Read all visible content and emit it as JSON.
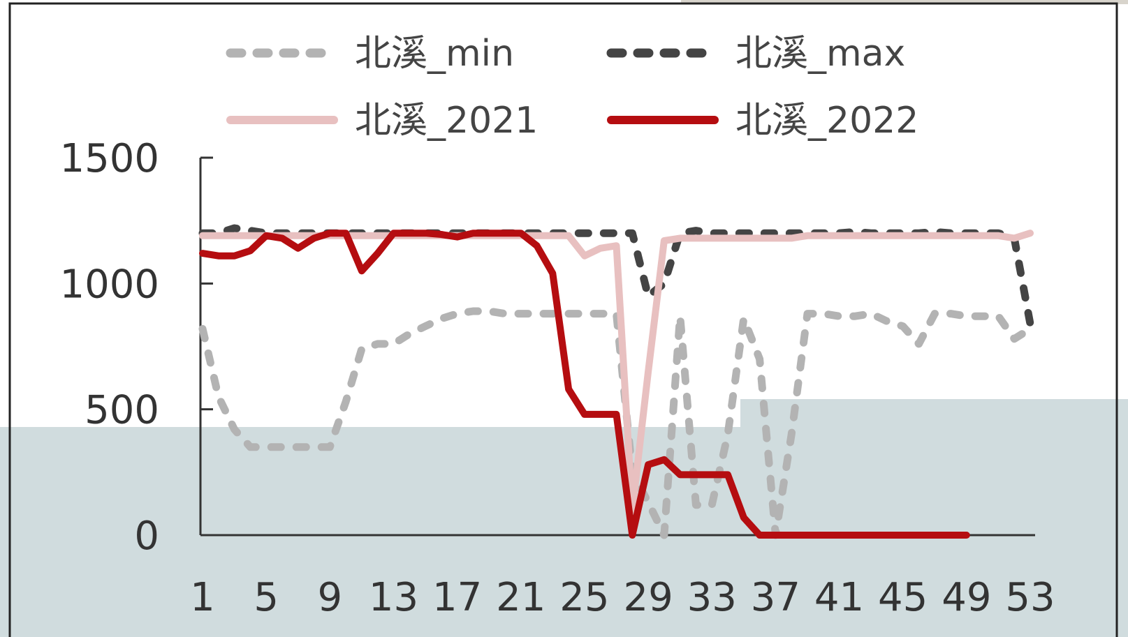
{
  "chart_data": {
    "type": "line",
    "title": "",
    "xlabel": "",
    "ylabel": "",
    "ylim": [
      0,
      1500
    ],
    "y_ticks": [
      "0",
      "500",
      "1000",
      "1500"
    ],
    "x_range": [
      1,
      53
    ],
    "x_ticks": [
      "1",
      "5",
      "9",
      "13",
      "17",
      "21",
      "25",
      "29",
      "33",
      "37",
      "41",
      "45",
      "49",
      "53"
    ],
    "legend_position": "top",
    "series": [
      {
        "name": "北溪_min",
        "color": "#b3b3b3",
        "style": "dashed",
        "x": [
          1,
          2,
          3,
          4,
          5,
          6,
          7,
          8,
          9,
          10,
          11,
          12,
          13,
          14,
          15,
          16,
          17,
          18,
          19,
          20,
          21,
          22,
          23,
          24,
          25,
          26,
          27,
          28,
          29,
          30,
          31,
          32,
          33,
          34,
          35,
          36,
          37,
          38,
          39,
          40,
          41,
          42,
          43,
          44,
          45,
          46,
          47,
          48,
          49,
          50,
          51,
          52,
          53
        ],
        "values": [
          820,
          550,
          420,
          350,
          350,
          350,
          350,
          350,
          350,
          530,
          740,
          760,
          760,
          800,
          830,
          860,
          880,
          890,
          890,
          880,
          880,
          880,
          880,
          880,
          880,
          880,
          880,
          250,
          130,
          0,
          870,
          120,
          120,
          400,
          860,
          700,
          0,
          400,
          880,
          880,
          870,
          870,
          880,
          850,
          830,
          760,
          880,
          880,
          870,
          870,
          870,
          780,
          820
        ]
      },
      {
        "name": "北溪_max",
        "color": "#444444",
        "style": "dashed",
        "x": [
          1,
          2,
          3,
          4,
          5,
          6,
          7,
          8,
          9,
          10,
          11,
          12,
          13,
          14,
          15,
          16,
          17,
          18,
          19,
          20,
          21,
          22,
          23,
          24,
          25,
          26,
          27,
          28,
          29,
          30,
          31,
          32,
          33,
          34,
          35,
          36,
          37,
          38,
          39,
          40,
          41,
          42,
          43,
          44,
          45,
          46,
          47,
          48,
          49,
          50,
          51,
          52,
          53
        ],
        "values": [
          1200,
          1200,
          1220,
          1210,
          1200,
          1200,
          1200,
          1200,
          1200,
          1200,
          1200,
          1200,
          1200,
          1200,
          1200,
          1200,
          1200,
          1200,
          1200,
          1200,
          1200,
          1200,
          1200,
          1200,
          1200,
          1200,
          1200,
          1200,
          950,
          1000,
          1200,
          1210,
          1200,
          1200,
          1200,
          1200,
          1200,
          1200,
          1200,
          1200,
          1200,
          1205,
          1200,
          1200,
          1200,
          1200,
          1205,
          1200,
          1200,
          1200,
          1200,
          1180,
          840
        ]
      },
      {
        "name": "北溪_2021",
        "color": "#e8c0c0",
        "style": "solid",
        "x": [
          1,
          2,
          3,
          4,
          5,
          6,
          7,
          8,
          9,
          10,
          11,
          12,
          13,
          14,
          15,
          16,
          17,
          18,
          19,
          20,
          21,
          22,
          23,
          24,
          25,
          26,
          27,
          28,
          29,
          30,
          31,
          32,
          33,
          34,
          35,
          36,
          37,
          38,
          39,
          40,
          41,
          42,
          43,
          44,
          45,
          46,
          47,
          48,
          49,
          50,
          51,
          52,
          53
        ],
        "values": [
          1190,
          1190,
          1190,
          1190,
          1190,
          1190,
          1190,
          1190,
          1190,
          1190,
          1190,
          1190,
          1190,
          1190,
          1190,
          1190,
          1190,
          1190,
          1190,
          1190,
          1190,
          1190,
          1190,
          1190,
          1110,
          1140,
          1150,
          100,
          650,
          1170,
          1180,
          1180,
          1180,
          1180,
          1180,
          1180,
          1180,
          1180,
          1190,
          1190,
          1190,
          1190,
          1190,
          1190,
          1190,
          1190,
          1190,
          1190,
          1190,
          1190,
          1190,
          1180,
          1200
        ]
      },
      {
        "name": "北溪_2022",
        "color": "#b50d10",
        "style": "solid",
        "x": [
          1,
          2,
          3,
          4,
          5,
          6,
          7,
          8,
          9,
          10,
          11,
          12,
          13,
          14,
          15,
          16,
          17,
          18,
          19,
          20,
          21,
          22,
          23,
          24,
          25,
          26,
          27,
          28,
          29,
          30,
          31,
          32,
          33,
          34,
          35,
          36,
          37,
          38,
          39,
          40,
          41,
          42,
          43,
          44,
          45,
          46,
          47,
          48,
          49
        ],
        "values": [
          1120,
          1110,
          1110,
          1130,
          1190,
          1180,
          1140,
          1180,
          1200,
          1200,
          1050,
          1120,
          1200,
          1200,
          1200,
          1195,
          1185,
          1200,
          1200,
          1200,
          1200,
          1150,
          1040,
          580,
          480,
          480,
          480,
          0,
          280,
          300,
          240,
          240,
          240,
          240,
          70,
          0,
          0,
          0,
          0,
          0,
          0,
          0,
          0,
          0,
          0,
          0,
          0,
          0,
          0
        ]
      }
    ]
  }
}
